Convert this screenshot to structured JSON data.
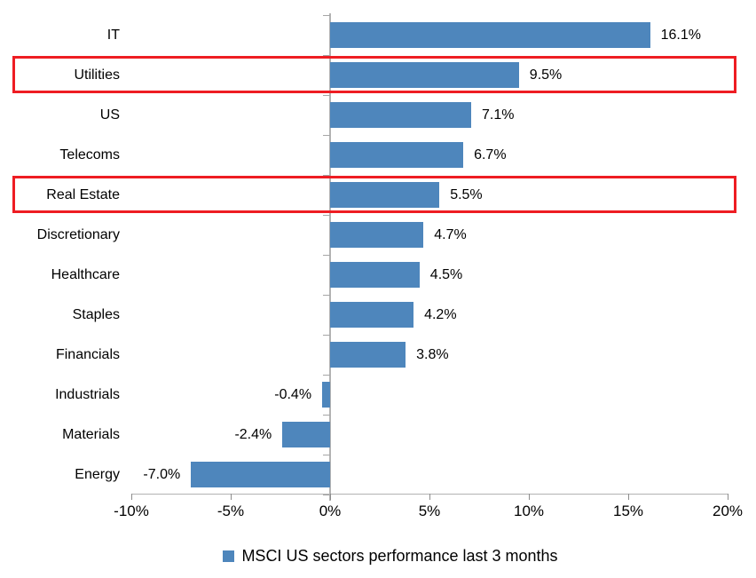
{
  "chart_data": {
    "type": "bar",
    "orientation": "horizontal",
    "title": "",
    "categories": [
      "IT",
      "Utilities",
      "US",
      "Telecoms",
      "Real Estate",
      "Discretionary",
      "Healthcare",
      "Staples",
      "Financials",
      "Industrials",
      "Materials",
      "Energy"
    ],
    "values": [
      16.1,
      9.5,
      7.1,
      6.7,
      5.5,
      4.7,
      4.5,
      4.2,
      3.8,
      -0.4,
      -2.4,
      -7.0
    ],
    "value_labels": [
      "16.1%",
      "9.5%",
      "7.1%",
      "6.7%",
      "5.5%",
      "4.7%",
      "4.5%",
      "4.2%",
      "3.8%",
      "-0.4%",
      "-2.4%",
      "-7.0%"
    ],
    "x_ticks": [
      "-10%",
      "-5%",
      "0%",
      "5%",
      "10%",
      "15%",
      "20%"
    ],
    "x_tick_values": [
      -10,
      -5,
      0,
      5,
      10,
      15,
      20
    ],
    "x_range": [
      -10,
      20
    ],
    "grid": false,
    "legend": "MSCI US sectors performance last 3 months",
    "legend_position": "bottom",
    "bar_color": "#4e86bc",
    "highlight_color": "#ee1d23",
    "highlighted_categories": [
      "Utilities",
      "Real Estate"
    ]
  }
}
